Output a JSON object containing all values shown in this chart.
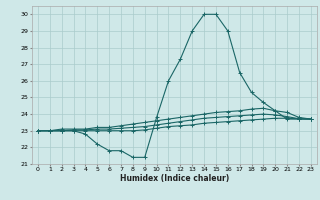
{
  "title": "",
  "xlabel": "Humidex (Indice chaleur)",
  "xlim": [
    -0.5,
    23.5
  ],
  "ylim": [
    21.0,
    30.5
  ],
  "yticks": [
    21,
    22,
    23,
    24,
    25,
    26,
    27,
    28,
    29,
    30
  ],
  "xticks": [
    0,
    1,
    2,
    3,
    4,
    5,
    6,
    7,
    8,
    9,
    10,
    11,
    12,
    13,
    14,
    15,
    16,
    17,
    18,
    19,
    20,
    21,
    22,
    23
  ],
  "bg_color": "#cfe8e8",
  "grid_color": "#aacccc",
  "line_color": "#1a6666",
  "series": {
    "main": [
      23.0,
      23.0,
      23.0,
      23.0,
      22.8,
      22.2,
      21.8,
      21.8,
      21.4,
      21.4,
      23.8,
      26.0,
      27.3,
      29.0,
      30.0,
      30.0,
      29.0,
      26.5,
      25.3,
      24.7,
      24.2,
      23.7,
      23.7,
      23.7
    ],
    "upper1": [
      23.0,
      23.0,
      23.1,
      23.1,
      23.1,
      23.2,
      23.2,
      23.3,
      23.4,
      23.5,
      23.6,
      23.7,
      23.8,
      23.9,
      24.0,
      24.1,
      24.15,
      24.2,
      24.3,
      24.35,
      24.2,
      24.1,
      23.8,
      23.7
    ],
    "upper2": [
      23.0,
      23.0,
      23.0,
      23.05,
      23.05,
      23.1,
      23.1,
      23.15,
      23.2,
      23.25,
      23.35,
      23.45,
      23.55,
      23.65,
      23.75,
      23.8,
      23.85,
      23.9,
      23.95,
      24.0,
      23.95,
      23.85,
      23.72,
      23.7
    ],
    "lower": [
      23.0,
      23.0,
      23.0,
      23.0,
      23.0,
      23.0,
      23.0,
      23.0,
      23.0,
      23.05,
      23.15,
      23.25,
      23.3,
      23.35,
      23.45,
      23.5,
      23.55,
      23.6,
      23.65,
      23.7,
      23.75,
      23.75,
      23.72,
      23.7
    ]
  }
}
